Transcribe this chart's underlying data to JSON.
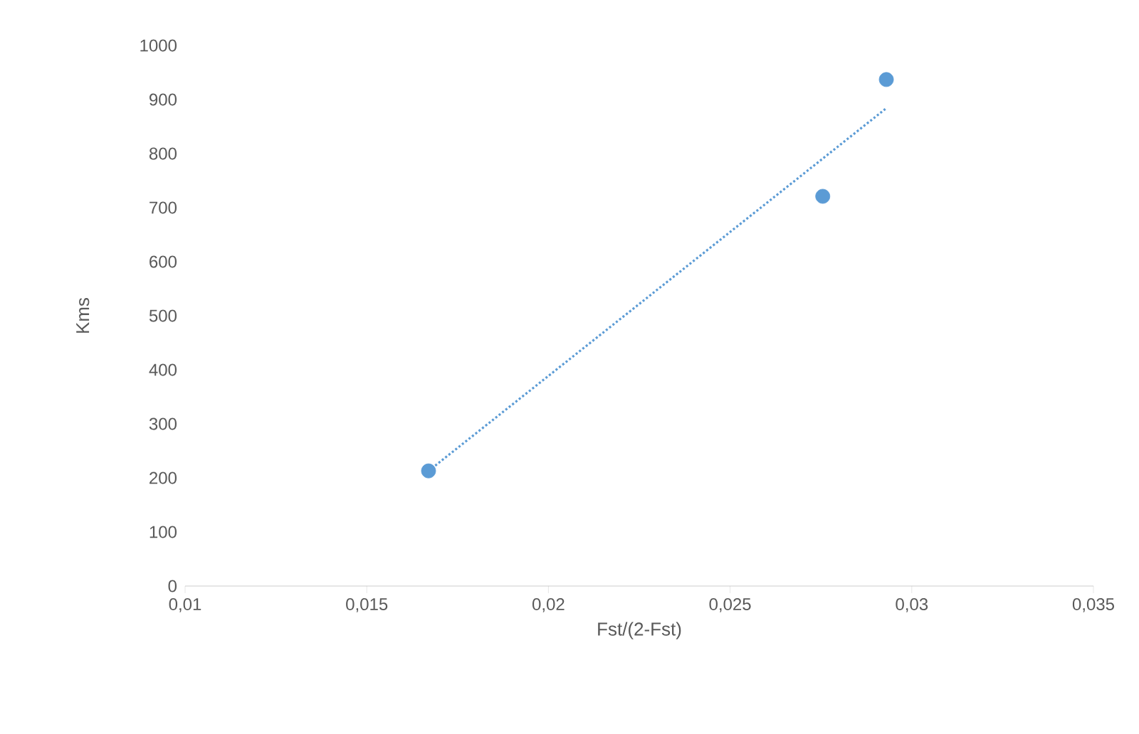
{
  "chart_data": {
    "type": "scatter",
    "xlabel": "Fst/(2-Fst)",
    "ylabel": "Kms",
    "xlim": [
      0.01,
      0.035
    ],
    "xticks": [
      {
        "value": 0.01,
        "label": "0,01"
      },
      {
        "value": 0.015,
        "label": "0,015"
      },
      {
        "value": 0.02,
        "label": "0,02"
      },
      {
        "value": 0.025,
        "label": "0,025"
      },
      {
        "value": 0.03,
        "label": "0,03"
      },
      {
        "value": 0.035,
        "label": "0,035"
      }
    ],
    "ylim": [
      0,
      1000
    ],
    "yticks": [
      0,
      100,
      200,
      300,
      400,
      500,
      600,
      700,
      800,
      900,
      1000
    ],
    "x": [
      0.0167,
      0.02755,
      0.0293
    ],
    "series": [
      {
        "color": "#5b9bd5",
        "marker": "circle",
        "values": [
          213,
          721,
          937
        ]
      },
      {
        "type": "line",
        "color": "#5b9bd5",
        "marker": "none",
        "line_style": "dotted",
        "x": [
          0.0167,
          0.0293
        ],
        "values": [
          213,
          884
        ]
      }
    ],
    "grid": false
  }
}
